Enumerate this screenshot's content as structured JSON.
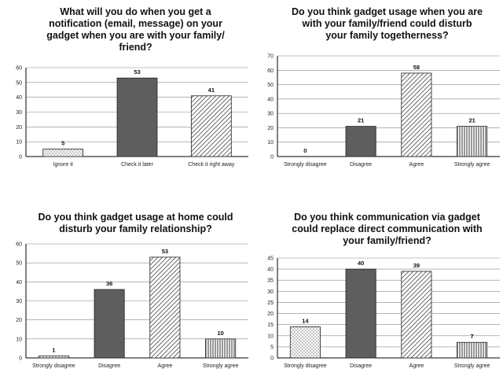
{
  "chart_data": [
    {
      "type": "bar",
      "title_lines": [
        "What will you do when you get a",
        "notification (email, message) on your",
        "gadget when you are with your family/",
        "friend?"
      ],
      "categories": [
        "Ignore it",
        "Check it later",
        "Check it right away"
      ],
      "values": [
        5,
        53,
        41
      ],
      "value_labels": [
        "5",
        "53",
        "41"
      ],
      "patterns": [
        "dots",
        "solid",
        "diagonal"
      ],
      "ylim": [
        0,
        60
      ],
      "yticks": [
        "0",
        "10",
        "20",
        "30",
        "40",
        "50",
        "60"
      ],
      "grid": true,
      "legend": "none"
    },
    {
      "type": "bar",
      "title_lines": [
        "Do you think gadget usage when you are",
        "with your family/friend could disturb",
        "your family togetherness?"
      ],
      "categories": [
        "Strongly disagree",
        "Disagree",
        "Agree",
        "Strongly agree"
      ],
      "values": [
        0,
        21,
        58,
        21
      ],
      "value_labels": [
        "0",
        "21",
        "58",
        "21"
      ],
      "patterns": [
        "dots",
        "solid",
        "diagonal",
        "vertical"
      ],
      "ylim": [
        0,
        70
      ],
      "yticks": [
        "0",
        "10",
        "20",
        "30",
        "40",
        "50",
        "60",
        "70"
      ],
      "grid": true,
      "legend": "none"
    },
    {
      "type": "bar",
      "title_lines": [
        "Do you think gadget usage at home could",
        "disturb your family relationship?"
      ],
      "categories": [
        "Strongly disagree",
        "Disagree",
        "Agree",
        "Strongly agree"
      ],
      "values": [
        1,
        36,
        53,
        10
      ],
      "value_labels": [
        "1",
        "36",
        "53",
        "10"
      ],
      "patterns": [
        "dots",
        "solid",
        "diagonal",
        "vertical"
      ],
      "ylim": [
        0,
        60
      ],
      "yticks": [
        "0",
        "10",
        "20",
        "30",
        "40",
        "50",
        "60"
      ],
      "grid": true,
      "legend": "none"
    },
    {
      "type": "bar",
      "title_lines": [
        "Do you think communication via gadget",
        "could replace direct communication with",
        "your family/friend?"
      ],
      "categories": [
        "Strongly disagree",
        "Disagree",
        "Agree",
        "Strongly agree"
      ],
      "values": [
        14,
        40,
        39,
        7
      ],
      "value_labels": [
        "14",
        "40",
        "39",
        "7"
      ],
      "patterns": [
        "dots",
        "solid",
        "diagonal",
        "vertical"
      ],
      "ylim": [
        0,
        45
      ],
      "yticks": [
        "0",
        "5",
        "10",
        "15",
        "20",
        "25",
        "30",
        "35",
        "40",
        "45"
      ],
      "grid": true,
      "legend": "none"
    }
  ]
}
